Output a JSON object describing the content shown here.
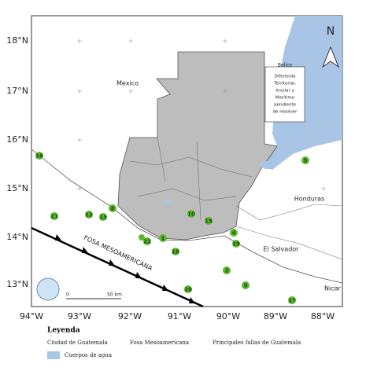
{
  "map": {
    "lat_labels": [
      "18°N",
      "17°N",
      "16°N",
      "15°N",
      "14°N",
      "13°N"
    ],
    "lon_labels": [
      "94°W",
      "93°W",
      "92°W",
      "91°W",
      "90°W",
      "89°W",
      "88°W"
    ],
    "places": {
      "mexico": "Mexico",
      "belize": "Belice",
      "honduras": "Honduras",
      "el_salvador": "El Salvador",
      "nicaragua": "Nicar"
    },
    "dispute_note": [
      "Diferendo",
      "Territorial,",
      "Insular y",
      "Marítimo",
      "pendiente",
      "de resolver"
    ],
    "trench_label": "FOSA MESOAMERICANA",
    "north": "N",
    "scale": [
      "0",
      "50 km"
    ],
    "points": [
      "16",
      "21",
      "12",
      "13",
      "8",
      "22",
      "1",
      "18",
      "10",
      "15",
      "4",
      "19",
      "5",
      "2",
      "9",
      "20",
      "17"
    ]
  },
  "legend": {
    "title": "Leyenda",
    "items": [
      "Ciudad de Guatemala",
      "Fosa Mesoamericana",
      "Principales fallas de Guatemala",
      "Cuerpos de agua"
    ]
  }
}
